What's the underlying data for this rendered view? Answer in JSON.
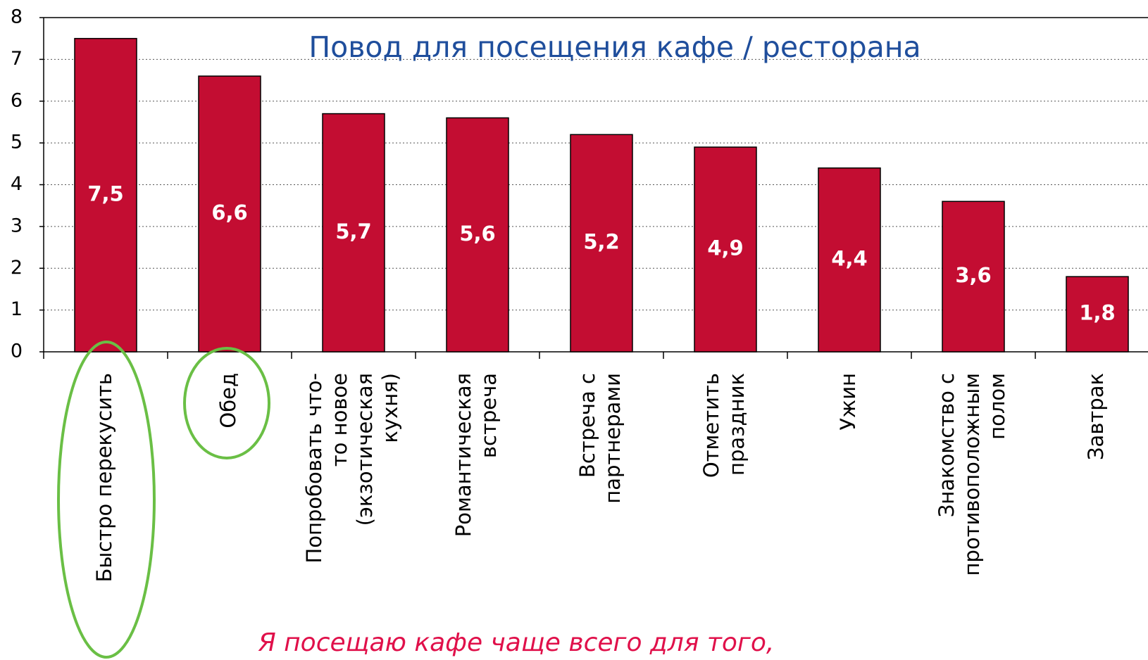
{
  "chart_data": {
    "type": "bar",
    "title": "Повод для посещения кафе / ресторана",
    "annotation": "Я посещаю кафе чаще всего для того,",
    "categories": [
      "Быстро перекусить",
      "Обед",
      "Попробовать что-\nто новое\n(экзотическая\nкухня)",
      "Романтическая\nвстреча",
      "Встреча с\nпартнерами",
      "Отметить\nпраздник",
      "Ужин",
      "Знакомство с\nпротивоположным\nполом",
      "Завтрак"
    ],
    "values": [
      7.5,
      6.6,
      5.7,
      5.6,
      5.2,
      4.9,
      4.4,
      3.6,
      1.8
    ],
    "value_labels": [
      "7,5",
      "6,6",
      "5,7",
      "5,6",
      "5,2",
      "4,9",
      "4,4",
      "3,6",
      "1,8"
    ],
    "color": "#c30d32",
    "ylim": [
      0,
      8
    ],
    "yticks": [
      0,
      1,
      2,
      3,
      4,
      5,
      6,
      7,
      8
    ],
    "grid": true
  }
}
